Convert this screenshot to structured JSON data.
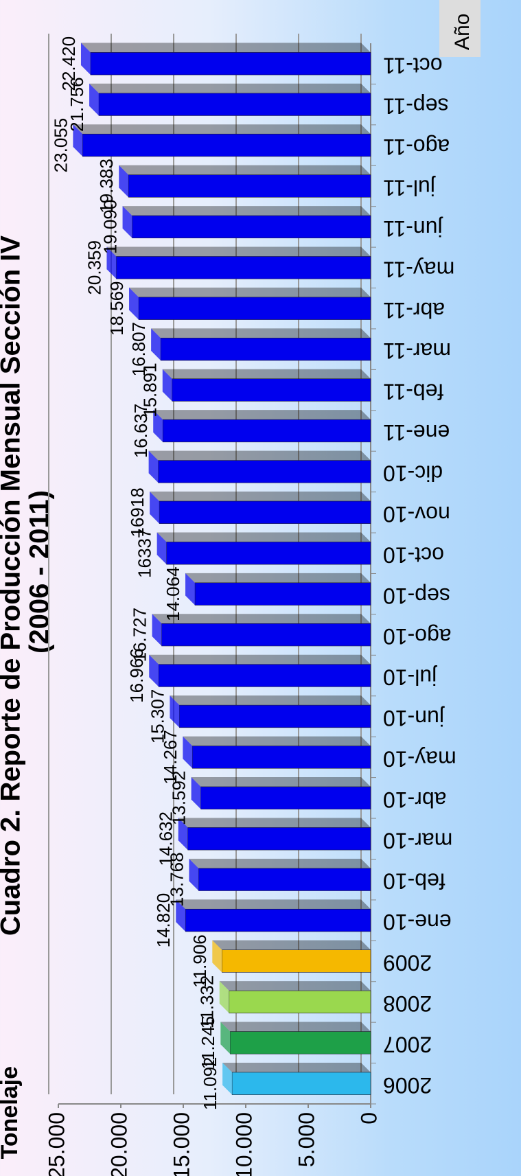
{
  "chart_data": {
    "type": "bar",
    "title": "Cuadro 2. Reporte de Producción Mensual Sección IV",
    "subtitle": "(2006 - 2011)",
    "y_label": "Tonelaje",
    "x_label": "Año",
    "categories": [
      "2006",
      "2007",
      "2008",
      "2009",
      "ene-10",
      "feb-10",
      "mar-10",
      "abr-10",
      "may-10",
      "jun-10",
      "jul-10",
      "ago-10",
      "sep-10",
      "oct-10",
      "nov-10",
      "dic-10",
      "ene-11",
      "feb-11",
      "mar-11",
      "abr-11",
      "may-11",
      "jun-11",
      "jul-11",
      "ago-11",
      "sep-11",
      "oct-11"
    ],
    "values": [
      11092,
      11245,
      11332,
      11906,
      14820,
      13768,
      14632,
      13592,
      14267,
      15307,
      16966,
      16727,
      14064,
      16337,
      16918,
      17000,
      16637,
      15891,
      16807,
      18569,
      20359,
      19090,
      19383,
      23055,
      21756,
      22420
    ],
    "value_labels": [
      "11.092",
      "11.245",
      "11.332",
      "11.906",
      "14.820",
      "13.768",
      "14.632",
      "13.592",
      "14.267",
      "15.307",
      "16.966",
      "16.727",
      "14.064",
      "16337",
      "16918",
      null,
      "16.637",
      "15.891",
      "16.807",
      "18.569",
      "20.359",
      "19.090",
      "19.383",
      "23.055",
      "21.756",
      "22.420"
    ],
    "colors": [
      "#2cb8ec",
      "#1ea048",
      "#9ad84e",
      "#f5b800",
      "#0000ee",
      "#0000ee",
      "#0000ee",
      "#0000ee",
      "#0000ee",
      "#0000ee",
      "#0000ee",
      "#0000ee",
      "#0000ee",
      "#0000ee",
      "#0000ee",
      "#0000ee",
      "#0000ee",
      "#0000ee",
      "#0000ee",
      "#0000ee",
      "#0000ee",
      "#0000ee",
      "#0000ee",
      "#0000ee",
      "#0000ee",
      "#0000ee"
    ],
    "ylim": [
      0,
      25000
    ],
    "yticks": [
      0,
      {
        "value": 5000,
        "label": "5.000"
      },
      {
        "value": 10000,
        "label": "10.000"
      },
      {
        "value": 15000,
        "label": "15.000"
      },
      {
        "value": 20000,
        "label": "20.000"
      },
      {
        "value": 25000,
        "label": "25.000"
      }
    ],
    "grid": true
  }
}
